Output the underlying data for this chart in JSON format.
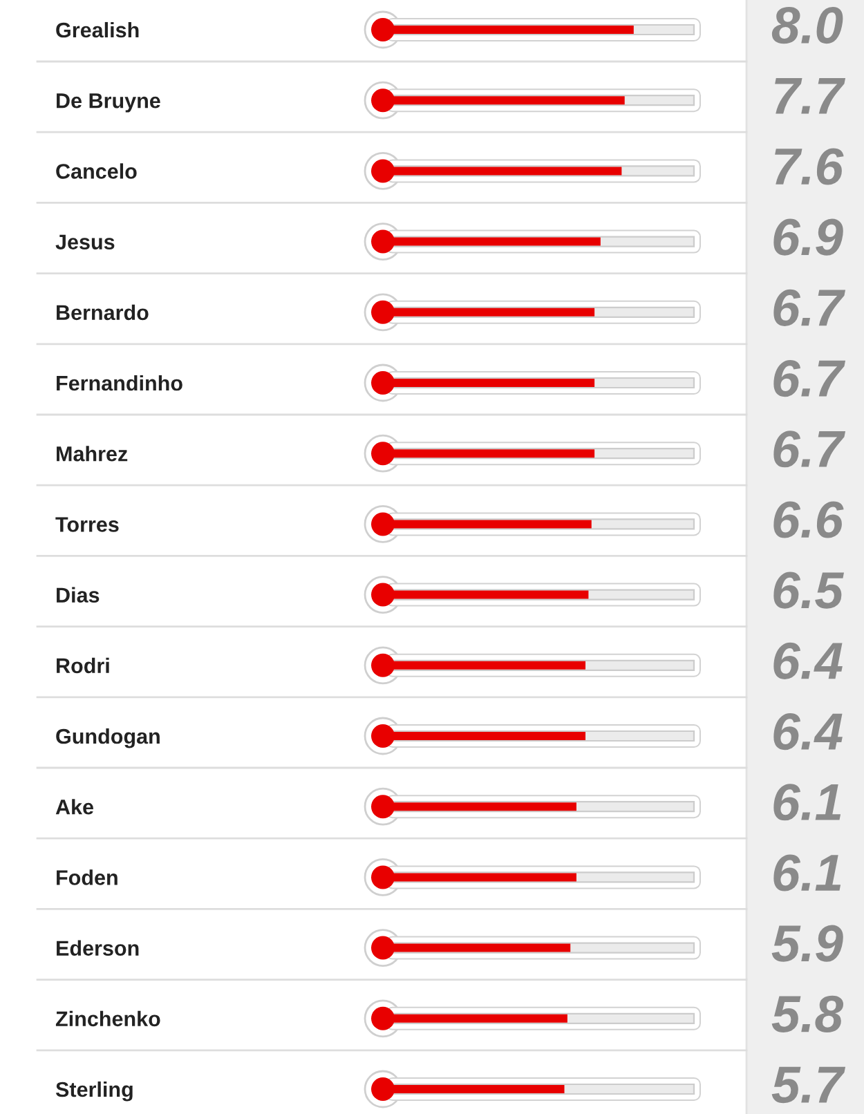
{
  "chart_data": {
    "type": "bar",
    "orientation": "horizontal",
    "categories": [
      "Grealish",
      "De Bruyne",
      "Cancelo",
      "Jesus",
      "Bernardo",
      "Fernandinho",
      "Mahrez",
      "Torres",
      "Dias",
      "Rodri",
      "Gundogan",
      "Ake",
      "Foden",
      "Ederson",
      "Zinchenko",
      "Sterling"
    ],
    "values": [
      8.0,
      7.7,
      7.6,
      6.9,
      6.7,
      6.7,
      6.7,
      6.6,
      6.5,
      6.4,
      6.4,
      6.1,
      6.1,
      5.9,
      5.8,
      5.7
    ],
    "value_labels": [
      "8.0",
      "7.7",
      "7.6",
      "6.9",
      "6.7",
      "6.7",
      "6.7",
      "6.6",
      "6.5",
      "6.4",
      "6.4",
      "6.1",
      "6.1",
      "5.9",
      "5.8",
      "5.7"
    ],
    "color": "#e80000",
    "xlim": [
      0,
      10
    ],
    "tick_labels": "y"
  }
}
